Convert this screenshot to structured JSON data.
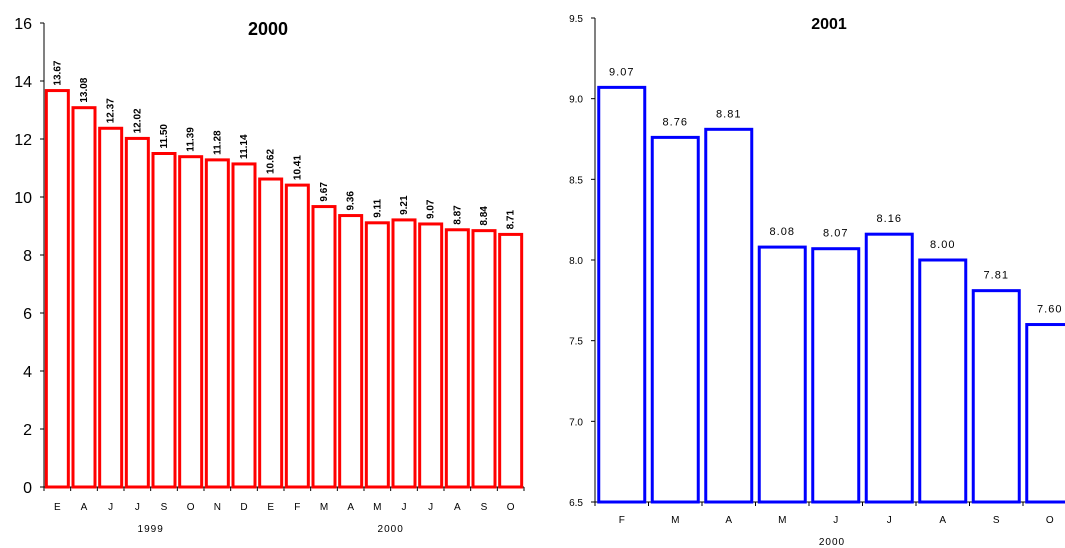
{
  "chart_data": [
    {
      "type": "bar",
      "title": "2000",
      "categories": [
        "E",
        "A",
        "J",
        "J",
        "S",
        "O",
        "N",
        "D",
        "E",
        "F",
        "M",
        "A",
        "M",
        "J",
        "J",
        "A",
        "S",
        "O"
      ],
      "values": [
        13.67,
        13.08,
        12.37,
        12.02,
        11.5,
        11.39,
        11.28,
        11.14,
        10.62,
        10.41,
        9.67,
        9.36,
        9.11,
        9.21,
        9.07,
        8.87,
        8.84,
        8.71
      ],
      "value_labels": [
        "13.67",
        "13.08",
        "12.37",
        "12.02",
        "11.50",
        "11.39",
        "11.28",
        "11.14",
        "10.62",
        "10.41",
        "9.67",
        "9.36",
        "9.11",
        "9.21",
        "9.07",
        "8.87",
        "8.84",
        "8.71"
      ],
      "year_groups": [
        {
          "label": "1999",
          "from_index": 0,
          "to_index": 7
        },
        {
          "label": "2000",
          "from_index": 8,
          "to_index": 17
        }
      ],
      "ylim": [
        0,
        16
      ],
      "yticks": [
        "0",
        "2",
        "4",
        "6",
        "8",
        "10",
        "12",
        "14",
        "16"
      ],
      "grid": false,
      "bar_color": "#ff0000"
    },
    {
      "type": "bar",
      "title": "2001",
      "categories": [
        "F",
        "M",
        "A",
        "M",
        "J",
        "J",
        "A",
        "S",
        "O"
      ],
      "values": [
        9.07,
        8.76,
        8.81,
        8.08,
        8.07,
        8.16,
        8.0,
        7.81,
        7.6
      ],
      "value_labels": [
        "9.07",
        "8.76",
        "8.81",
        "8.08",
        "8.07",
        "8.16",
        "8.00",
        "7.81",
        "7.60"
      ],
      "xlabel": "2000",
      "ylim": [
        6.5,
        9.5
      ],
      "yticks": [
        "6.5",
        "7.0",
        "7.5",
        "8.0",
        "8.5",
        "9.0",
        "9.5"
      ],
      "grid": false,
      "bar_color": "#0000ff"
    }
  ]
}
